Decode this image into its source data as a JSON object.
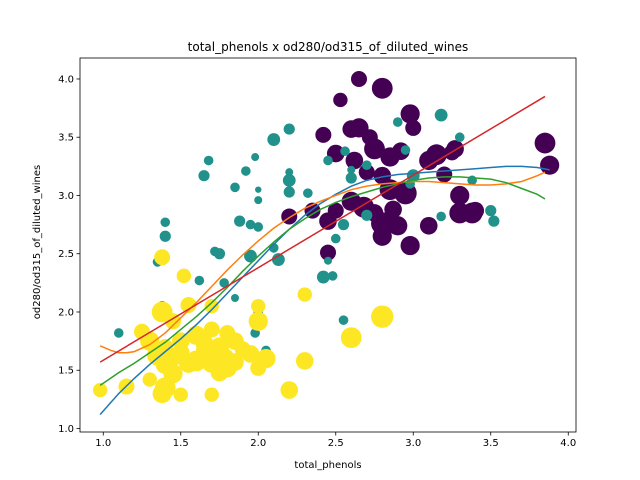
{
  "chart_data": {
    "type": "scatter",
    "title": "total_phenols x od280/od315_of_diluted_wines",
    "xlabel": "total_phenols",
    "ylabel": "od280/od315_of_diluted_wines",
    "xlim": [
      0.85,
      4.05
    ],
    "ylim": [
      0.97,
      4.18
    ],
    "x_ticks": [
      1.0,
      1.5,
      2.0,
      2.5,
      3.0,
      3.5,
      4.0
    ],
    "x_tick_labels": [
      "1.0",
      "1.5",
      "2.0",
      "2.5",
      "3.0",
      "3.5",
      "4.0"
    ],
    "y_ticks": [
      1.0,
      1.5,
      2.0,
      2.5,
      3.0,
      3.5,
      4.0
    ],
    "y_tick_labels": [
      "1.0",
      "1.5",
      "2.0",
      "2.5",
      "3.0",
      "3.5",
      "4.0"
    ],
    "grid": false,
    "legend": "none",
    "colors": {
      "class_0": "#440154",
      "class_1": "#21918c",
      "class_2": "#fde725",
      "fit_1": "#1f77b4",
      "fit_2": "#ff7f0e",
      "fit_3": "#2ca02c",
      "fit_4": "#d62728"
    },
    "series": [
      {
        "class": 0,
        "points": [
          {
            "x": 2.8,
            "y": 3.92,
            "s": 1.3
          },
          {
            "x": 2.65,
            "y": 4.0,
            "s": 1.0
          },
          {
            "x": 2.53,
            "y": 3.82,
            "s": 0.9
          },
          {
            "x": 2.6,
            "y": 3.57,
            "s": 1.1
          },
          {
            "x": 2.65,
            "y": 3.58,
            "s": 1.2
          },
          {
            "x": 2.72,
            "y": 3.5,
            "s": 1.0
          },
          {
            "x": 2.42,
            "y": 3.52,
            "s": 1.0
          },
          {
            "x": 2.5,
            "y": 3.36,
            "s": 1.1
          },
          {
            "x": 2.62,
            "y": 3.3,
            "s": 1.1
          },
          {
            "x": 2.75,
            "y": 3.4,
            "s": 1.3
          },
          {
            "x": 2.85,
            "y": 3.33,
            "s": 1.2
          },
          {
            "x": 2.7,
            "y": 3.2,
            "s": 1.0
          },
          {
            "x": 2.98,
            "y": 3.7,
            "s": 1.2
          },
          {
            "x": 3.0,
            "y": 3.58,
            "s": 1.0
          },
          {
            "x": 2.92,
            "y": 3.38,
            "s": 1.1
          },
          {
            "x": 3.1,
            "y": 3.3,
            "s": 1.2
          },
          {
            "x": 3.15,
            "y": 3.35,
            "s": 1.3
          },
          {
            "x": 3.27,
            "y": 3.4,
            "s": 1.1
          },
          {
            "x": 3.2,
            "y": 3.18,
            "s": 1.0
          },
          {
            "x": 2.8,
            "y": 3.17,
            "s": 1.1
          },
          {
            "x": 2.85,
            "y": 3.05,
            "s": 1.3
          },
          {
            "x": 2.95,
            "y": 3.02,
            "s": 1.4
          },
          {
            "x": 2.6,
            "y": 2.95,
            "s": 1.2
          },
          {
            "x": 2.68,
            "y": 2.9,
            "s": 1.3
          },
          {
            "x": 2.75,
            "y": 2.85,
            "s": 1.1
          },
          {
            "x": 2.87,
            "y": 2.88,
            "s": 1.1
          },
          {
            "x": 2.5,
            "y": 2.87,
            "s": 1.0
          },
          {
            "x": 2.35,
            "y": 2.87,
            "s": 1.0
          },
          {
            "x": 2.45,
            "y": 2.78,
            "s": 1.1
          },
          {
            "x": 2.2,
            "y": 2.82,
            "s": 1.0
          },
          {
            "x": 2.8,
            "y": 2.76,
            "s": 1.4
          },
          {
            "x": 3.3,
            "y": 3.0,
            "s": 1.2
          },
          {
            "x": 3.3,
            "y": 2.85,
            "s": 1.3
          },
          {
            "x": 3.38,
            "y": 2.85,
            "s": 1.3
          },
          {
            "x": 3.4,
            "y": 2.87,
            "s": 1.1
          },
          {
            "x": 2.9,
            "y": 2.74,
            "s": 1.2
          },
          {
            "x": 3.1,
            "y": 2.74,
            "s": 1.1
          },
          {
            "x": 2.8,
            "y": 2.65,
            "s": 1.2
          },
          {
            "x": 2.98,
            "y": 2.57,
            "s": 1.2
          },
          {
            "x": 2.45,
            "y": 2.51,
            "s": 1.0
          },
          {
            "x": 3.85,
            "y": 3.45,
            "s": 1.3
          },
          {
            "x": 3.88,
            "y": 3.26,
            "s": 1.2
          },
          {
            "x": 3.25,
            "y": 3.37,
            "s": 1.0
          }
        ]
      },
      {
        "class": 1,
        "points": [
          {
            "x": 2.2,
            "y": 3.57,
            "s": 0.7
          },
          {
            "x": 2.1,
            "y": 3.48,
            "s": 0.8
          },
          {
            "x": 1.68,
            "y": 3.3,
            "s": 0.6
          },
          {
            "x": 1.98,
            "y": 3.33,
            "s": 0.5
          },
          {
            "x": 1.92,
            "y": 3.21,
            "s": 0.6
          },
          {
            "x": 1.65,
            "y": 3.17,
            "s": 0.7
          },
          {
            "x": 2.2,
            "y": 3.2,
            "s": 0.5
          },
          {
            "x": 2.2,
            "y": 3.13,
            "s": 0.8
          },
          {
            "x": 2.2,
            "y": 3.03,
            "s": 0.7
          },
          {
            "x": 2.0,
            "y": 3.05,
            "s": 0.4
          },
          {
            "x": 2.0,
            "y": 2.96,
            "s": 0.5
          },
          {
            "x": 1.85,
            "y": 3.07,
            "s": 0.6
          },
          {
            "x": 2.32,
            "y": 3.02,
            "s": 0.6
          },
          {
            "x": 2.45,
            "y": 3.3,
            "s": 0.6
          },
          {
            "x": 2.56,
            "y": 3.38,
            "s": 0.6
          },
          {
            "x": 2.6,
            "y": 3.15,
            "s": 0.7
          },
          {
            "x": 2.7,
            "y": 3.26,
            "s": 0.6
          },
          {
            "x": 2.9,
            "y": 3.63,
            "s": 0.6
          },
          {
            "x": 2.95,
            "y": 3.39,
            "s": 0.6
          },
          {
            "x": 3.18,
            "y": 3.69,
            "s": 0.8
          },
          {
            "x": 3.3,
            "y": 3.5,
            "s": 0.6
          },
          {
            "x": 3.38,
            "y": 3.13,
            "s": 0.6
          },
          {
            "x": 3.0,
            "y": 3.17,
            "s": 0.8
          },
          {
            "x": 2.7,
            "y": 2.83,
            "s": 0.7
          },
          {
            "x": 3.18,
            "y": 2.82,
            "s": 0.6
          },
          {
            "x": 3.5,
            "y": 2.87,
            "s": 0.7
          },
          {
            "x": 3.52,
            "y": 2.78,
            "s": 0.7
          },
          {
            "x": 1.88,
            "y": 2.78,
            "s": 0.7
          },
          {
            "x": 1.95,
            "y": 2.75,
            "s": 0.6
          },
          {
            "x": 2.0,
            "y": 2.73,
            "s": 0.6
          },
          {
            "x": 2.55,
            "y": 2.75,
            "s": 0.7
          },
          {
            "x": 1.4,
            "y": 2.77,
            "s": 0.6
          },
          {
            "x": 1.4,
            "y": 2.65,
            "s": 0.7
          },
          {
            "x": 2.5,
            "y": 2.63,
            "s": 0.6
          },
          {
            "x": 1.72,
            "y": 2.52,
            "s": 0.6
          },
          {
            "x": 1.75,
            "y": 2.5,
            "s": 0.7
          },
          {
            "x": 1.95,
            "y": 2.48,
            "s": 0.8
          },
          {
            "x": 2.1,
            "y": 2.55,
            "s": 0.6
          },
          {
            "x": 2.13,
            "y": 2.45,
            "s": 0.8
          },
          {
            "x": 2.45,
            "y": 2.44,
            "s": 0.5
          },
          {
            "x": 1.35,
            "y": 2.43,
            "s": 0.6
          },
          {
            "x": 2.42,
            "y": 2.3,
            "s": 0.8
          },
          {
            "x": 2.48,
            "y": 2.31,
            "s": 0.6
          },
          {
            "x": 1.62,
            "y": 2.27,
            "s": 0.6
          },
          {
            "x": 1.78,
            "y": 2.25,
            "s": 0.6
          },
          {
            "x": 1.85,
            "y": 2.12,
            "s": 0.5
          },
          {
            "x": 1.38,
            "y": 2.06,
            "s": 0.5
          },
          {
            "x": 2.0,
            "y": 2.0,
            "s": 0.6
          },
          {
            "x": 1.1,
            "y": 1.82,
            "s": 0.6
          },
          {
            "x": 1.98,
            "y": 1.82,
            "s": 0.6
          },
          {
            "x": 2.55,
            "y": 1.93,
            "s": 0.6
          },
          {
            "x": 2.05,
            "y": 1.67,
            "s": 0.6
          },
          {
            "x": 1.62,
            "y": 1.75,
            "s": 0.5
          },
          {
            "x": 2.98,
            "y": 3.1,
            "s": 0.6
          },
          {
            "x": 2.6,
            "y": 3.22,
            "s": 0.5
          }
        ]
      },
      {
        "class": 2,
        "points": [
          {
            "x": 2.8,
            "y": 1.96,
            "s": 1.4
          },
          {
            "x": 2.6,
            "y": 1.78,
            "s": 1.3
          },
          {
            "x": 2.3,
            "y": 1.58,
            "s": 1.1
          },
          {
            "x": 2.2,
            "y": 1.33,
            "s": 1.1
          },
          {
            "x": 2.3,
            "y": 2.15,
            "s": 0.9
          },
          {
            "x": 2.0,
            "y": 2.05,
            "s": 0.9
          },
          {
            "x": 2.0,
            "y": 1.92,
            "s": 1.2
          },
          {
            "x": 1.52,
            "y": 2.31,
            "s": 0.9
          },
          {
            "x": 1.38,
            "y": 2.47,
            "s": 1.0
          },
          {
            "x": 1.55,
            "y": 2.06,
            "s": 1.0
          },
          {
            "x": 1.7,
            "y": 2.05,
            "s": 0.9
          },
          {
            "x": 1.38,
            "y": 2.0,
            "s": 1.3
          },
          {
            "x": 1.45,
            "y": 1.92,
            "s": 1.0
          },
          {
            "x": 1.25,
            "y": 1.83,
            "s": 1.0
          },
          {
            "x": 1.3,
            "y": 1.75,
            "s": 1.2
          },
          {
            "x": 1.4,
            "y": 1.7,
            "s": 1.0
          },
          {
            "x": 1.5,
            "y": 1.75,
            "s": 1.1
          },
          {
            "x": 1.6,
            "y": 1.8,
            "s": 1.2
          },
          {
            "x": 1.65,
            "y": 1.74,
            "s": 1.1
          },
          {
            "x": 1.7,
            "y": 1.85,
            "s": 1.0
          },
          {
            "x": 1.75,
            "y": 1.7,
            "s": 1.2
          },
          {
            "x": 1.8,
            "y": 1.82,
            "s": 1.0
          },
          {
            "x": 1.85,
            "y": 1.75,
            "s": 1.1
          },
          {
            "x": 1.9,
            "y": 1.68,
            "s": 1.0
          },
          {
            "x": 1.95,
            "y": 1.64,
            "s": 1.1
          },
          {
            "x": 1.35,
            "y": 1.63,
            "s": 1.3
          },
          {
            "x": 1.4,
            "y": 1.55,
            "s": 1.2
          },
          {
            "x": 1.45,
            "y": 1.6,
            "s": 1.0
          },
          {
            "x": 1.5,
            "y": 1.65,
            "s": 1.1
          },
          {
            "x": 1.55,
            "y": 1.56,
            "s": 1.2
          },
          {
            "x": 1.6,
            "y": 1.58,
            "s": 1.3
          },
          {
            "x": 1.65,
            "y": 1.62,
            "s": 1.0
          },
          {
            "x": 1.7,
            "y": 1.56,
            "s": 1.2
          },
          {
            "x": 1.72,
            "y": 1.64,
            "s": 1.1
          },
          {
            "x": 1.78,
            "y": 1.6,
            "s": 1.3
          },
          {
            "x": 1.8,
            "y": 1.52,
            "s": 1.2
          },
          {
            "x": 1.85,
            "y": 1.57,
            "s": 1.1
          },
          {
            "x": 2.0,
            "y": 1.52,
            "s": 1.0
          },
          {
            "x": 2.05,
            "y": 1.6,
            "s": 1.2
          },
          {
            "x": 1.45,
            "y": 1.47,
            "s": 1.2
          },
          {
            "x": 1.75,
            "y": 1.48,
            "s": 1.1
          },
          {
            "x": 1.3,
            "y": 1.42,
            "s": 0.9
          },
          {
            "x": 1.4,
            "y": 1.35,
            "s": 1.3
          },
          {
            "x": 1.38,
            "y": 1.3,
            "s": 1.2
          },
          {
            "x": 1.5,
            "y": 1.29,
            "s": 0.9
          },
          {
            "x": 1.7,
            "y": 1.29,
            "s": 0.9
          },
          {
            "x": 1.15,
            "y": 1.36,
            "s": 1.0
          },
          {
            "x": 0.98,
            "y": 1.33,
            "s": 0.9
          },
          {
            "x": 1.65,
            "y": 1.68,
            "s": 1.0
          }
        ]
      }
    ],
    "fit_lines": [
      {
        "color": "fit_1",
        "x": [
          0.98,
          1.1,
          1.2,
          1.3,
          1.4,
          1.5,
          1.6,
          1.7,
          1.8,
          1.9,
          2.0,
          2.1,
          2.2,
          2.3,
          2.4,
          2.5,
          2.6,
          2.7,
          2.8,
          2.9,
          3.0,
          3.1,
          3.2,
          3.3,
          3.4,
          3.5,
          3.6,
          3.7,
          3.8,
          3.88
        ],
        "y": [
          1.12,
          1.3,
          1.43,
          1.55,
          1.66,
          1.77,
          1.89,
          2.02,
          2.16,
          2.3,
          2.44,
          2.58,
          2.71,
          2.83,
          2.93,
          3.01,
          3.08,
          3.13,
          3.16,
          3.18,
          3.19,
          3.2,
          3.21,
          3.22,
          3.23,
          3.24,
          3.25,
          3.25,
          3.24,
          3.22
        ]
      },
      {
        "color": "fit_2",
        "x": [
          0.98,
          1.05,
          1.1,
          1.15,
          1.2,
          1.3,
          1.4,
          1.5,
          1.6,
          1.7,
          1.8,
          1.9,
          2.0,
          2.1,
          2.2,
          2.3,
          2.4,
          2.5,
          2.6,
          2.7,
          2.8,
          2.9,
          3.0,
          3.1,
          3.2,
          3.3,
          3.4,
          3.5,
          3.6,
          3.7,
          3.8,
          3.85
        ],
        "y": [
          1.71,
          1.67,
          1.65,
          1.65,
          1.66,
          1.72,
          1.82,
          1.95,
          2.08,
          2.22,
          2.36,
          2.49,
          2.61,
          2.72,
          2.81,
          2.89,
          2.95,
          3.0,
          3.05,
          3.08,
          3.1,
          3.11,
          3.12,
          3.12,
          3.11,
          3.1,
          3.09,
          3.09,
          3.1,
          3.12,
          3.17,
          3.2
        ]
      },
      {
        "color": "fit_3",
        "x": [
          0.98,
          1.1,
          1.2,
          1.3,
          1.4,
          1.5,
          1.6,
          1.7,
          1.8,
          1.9,
          2.0,
          2.1,
          2.2,
          2.3,
          2.4,
          2.5,
          2.6,
          2.7,
          2.8,
          2.9,
          3.0,
          3.1,
          3.2,
          3.3,
          3.4,
          3.5,
          3.6,
          3.7,
          3.8,
          3.85
        ],
        "y": [
          1.37,
          1.48,
          1.56,
          1.65,
          1.74,
          1.85,
          1.96,
          2.08,
          2.21,
          2.35,
          2.48,
          2.6,
          2.71,
          2.8,
          2.88,
          2.94,
          2.99,
          3.03,
          3.07,
          3.1,
          3.13,
          3.15,
          3.16,
          3.16,
          3.15,
          3.14,
          3.11,
          3.06,
          3.01,
          2.97
        ]
      },
      {
        "color": "fit_4",
        "x": [
          0.98,
          3.85
        ],
        "y": [
          1.57,
          3.85
        ]
      }
    ]
  }
}
